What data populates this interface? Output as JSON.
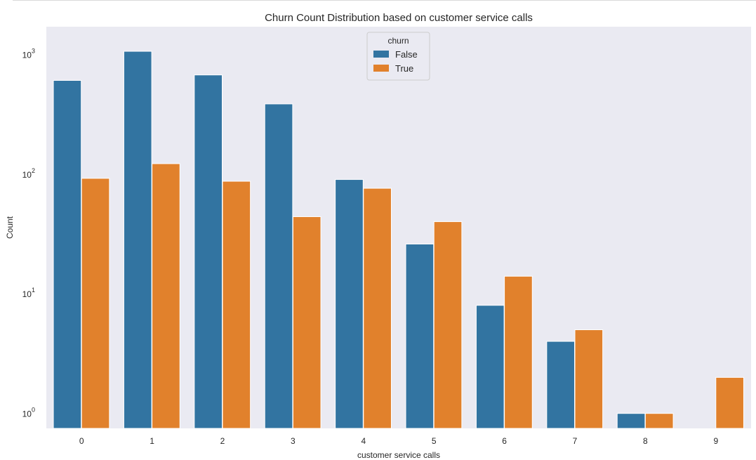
{
  "chart_data": {
    "type": "bar",
    "title": "Churn Count Distribution based on customer service calls",
    "xlabel": "customer service calls",
    "ylabel": "Count",
    "yscale": "log",
    "ylim": [
      0.75,
      1700
    ],
    "y_ticks": [
      {
        "value": 1,
        "base": "10",
        "exp": "0"
      },
      {
        "value": 10,
        "base": "10",
        "exp": "1"
      },
      {
        "value": 100,
        "base": "10",
        "exp": "2"
      },
      {
        "value": 1000,
        "base": "10",
        "exp": "3"
      }
    ],
    "categories": [
      "0",
      "1",
      "2",
      "3",
      "4",
      "5",
      "6",
      "7",
      "8",
      "9"
    ],
    "series": [
      {
        "name": "False",
        "color": "#3274a1",
        "values": [
          605,
          1059,
          672,
          385,
          90,
          26,
          8,
          4,
          1,
          null
        ]
      },
      {
        "name": "True",
        "color": "#e1812c",
        "values": [
          92,
          122,
          87,
          44,
          76,
          40,
          14,
          5,
          1,
          2
        ]
      }
    ],
    "legend": {
      "title": "churn",
      "position": "top-center"
    },
    "grid": false,
    "background": "#eaeaf2"
  }
}
